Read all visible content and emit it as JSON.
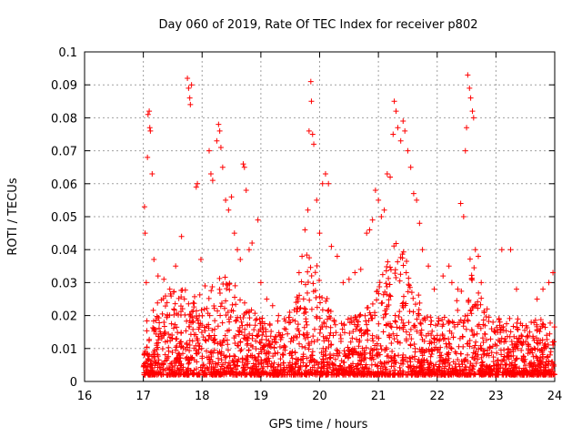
{
  "chart_data": {
    "type": "scatter",
    "title": "Day 060 of 2019, Rate Of TEC Index for receiver p802",
    "xlabel": "GPS time / hours",
    "ylabel": "ROTI / TECUs",
    "xlim": [
      16,
      24
    ],
    "ylim": [
      0,
      0.1
    ],
    "xticks": [
      "16",
      "17",
      "18",
      "19",
      "20",
      "21",
      "22",
      "23",
      "24"
    ],
    "yticks": [
      "0",
      "0.01",
      "0.02",
      "0.03",
      "0.04",
      "0.05",
      "0.06",
      "0.07",
      "0.08",
      "0.09",
      "0.1"
    ],
    "grid": true,
    "marker": "+",
    "color": "#ff0000",
    "series": [
      {
        "name": "ROTI",
        "points": [
          [
            17.02,
            0.053
          ],
          [
            17.03,
            0.045
          ],
          [
            17.05,
            0.03
          ],
          [
            17.07,
            0.068
          ],
          [
            17.08,
            0.081
          ],
          [
            17.1,
            0.082
          ],
          [
            17.11,
            0.077
          ],
          [
            17.12,
            0.076
          ],
          [
            17.15,
            0.063
          ],
          [
            17.18,
            0.037
          ],
          [
            17.25,
            0.032
          ],
          [
            17.35,
            0.031
          ],
          [
            17.45,
            0.028
          ],
          [
            17.55,
            0.035
          ],
          [
            17.65,
            0.044
          ],
          [
            17.75,
            0.092
          ],
          [
            17.77,
            0.089
          ],
          [
            17.79,
            0.086
          ],
          [
            17.8,
            0.084
          ],
          [
            17.82,
            0.09
          ],
          [
            17.9,
            0.059
          ],
          [
            17.92,
            0.06
          ],
          [
            17.98,
            0.037
          ],
          [
            18.05,
            0.029
          ],
          [
            18.12,
            0.07
          ],
          [
            18.15,
            0.063
          ],
          [
            18.18,
            0.061
          ],
          [
            18.25,
            0.073
          ],
          [
            18.28,
            0.078
          ],
          [
            18.3,
            0.076
          ],
          [
            18.32,
            0.071
          ],
          [
            18.35,
            0.065
          ],
          [
            18.4,
            0.055
          ],
          [
            18.45,
            0.052
          ],
          [
            18.5,
            0.056
          ],
          [
            18.55,
            0.045
          ],
          [
            18.6,
            0.04
          ],
          [
            18.65,
            0.037
          ],
          [
            18.7,
            0.066
          ],
          [
            18.72,
            0.065
          ],
          [
            18.75,
            0.058
          ],
          [
            18.8,
            0.04
          ],
          [
            18.85,
            0.042
          ],
          [
            18.95,
            0.049
          ],
          [
            19.0,
            0.03
          ],
          [
            19.1,
            0.025
          ],
          [
            19.2,
            0.023
          ],
          [
            19.3,
            0.02
          ],
          [
            19.4,
            0.019
          ],
          [
            19.5,
            0.018
          ],
          [
            19.6,
            0.024
          ],
          [
            19.65,
            0.033
          ],
          [
            19.7,
            0.038
          ],
          [
            19.75,
            0.046
          ],
          [
            19.8,
            0.052
          ],
          [
            19.82,
            0.076
          ],
          [
            19.85,
            0.091
          ],
          [
            19.86,
            0.085
          ],
          [
            19.88,
            0.075
          ],
          [
            19.9,
            0.072
          ],
          [
            19.95,
            0.055
          ],
          [
            20.0,
            0.045
          ],
          [
            20.05,
            0.06
          ],
          [
            20.1,
            0.063
          ],
          [
            20.15,
            0.06
          ],
          [
            20.2,
            0.041
          ],
          [
            20.3,
            0.038
          ],
          [
            20.4,
            0.03
          ],
          [
            20.5,
            0.031
          ],
          [
            20.6,
            0.033
          ],
          [
            20.7,
            0.034
          ],
          [
            20.8,
            0.045
          ],
          [
            20.85,
            0.046
          ],
          [
            20.9,
            0.049
          ],
          [
            20.95,
            0.058
          ],
          [
            21.0,
            0.055
          ],
          [
            21.05,
            0.05
          ],
          [
            21.1,
            0.052
          ],
          [
            21.15,
            0.063
          ],
          [
            21.2,
            0.062
          ],
          [
            21.25,
            0.075
          ],
          [
            21.27,
            0.085
          ],
          [
            21.3,
            0.082
          ],
          [
            21.33,
            0.077
          ],
          [
            21.38,
            0.073
          ],
          [
            21.42,
            0.079
          ],
          [
            21.45,
            0.076
          ],
          [
            21.5,
            0.07
          ],
          [
            21.55,
            0.065
          ],
          [
            21.6,
            0.057
          ],
          [
            21.65,
            0.055
          ],
          [
            21.7,
            0.048
          ],
          [
            21.75,
            0.04
          ],
          [
            21.85,
            0.035
          ],
          [
            21.95,
            0.028
          ],
          [
            22.1,
            0.032
          ],
          [
            22.2,
            0.035
          ],
          [
            22.25,
            0.03
          ],
          [
            22.35,
            0.028
          ],
          [
            22.4,
            0.054
          ],
          [
            22.45,
            0.05
          ],
          [
            22.48,
            0.07
          ],
          [
            22.5,
            0.077
          ],
          [
            22.52,
            0.093
          ],
          [
            22.55,
            0.089
          ],
          [
            22.57,
            0.086
          ],
          [
            22.6,
            0.082
          ],
          [
            22.62,
            0.08
          ],
          [
            22.65,
            0.04
          ],
          [
            22.7,
            0.038
          ],
          [
            22.75,
            0.03
          ],
          [
            22.85,
            0.022
          ],
          [
            22.95,
            0.018
          ],
          [
            23.1,
            0.04
          ],
          [
            23.25,
            0.04
          ],
          [
            23.35,
            0.028
          ],
          [
            23.45,
            0.017
          ],
          [
            23.6,
            0.018
          ],
          [
            23.7,
            0.025
          ],
          [
            23.8,
            0.028
          ],
          [
            23.9,
            0.03
          ],
          [
            23.97,
            0.033
          ]
        ]
      }
    ]
  }
}
